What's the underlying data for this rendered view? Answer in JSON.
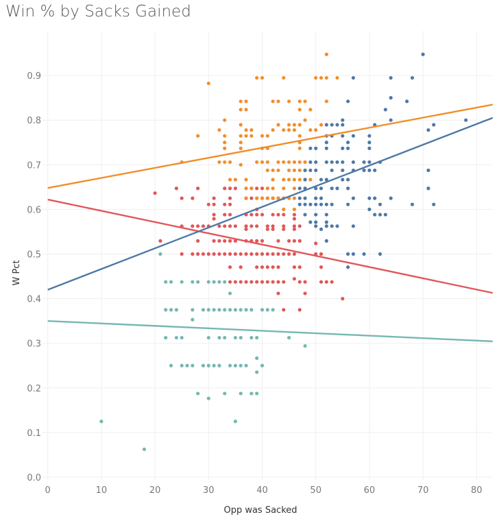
{
  "chart_data": {
    "type": "scatter",
    "title": "Win % by Sacks Gained",
    "xlabel": "Opp was Sacked",
    "ylabel": "W Pct",
    "xlim": [
      -1,
      83
    ],
    "ylim": [
      -0.02,
      1.0
    ],
    "xticks": [
      "0",
      "10",
      "20",
      "30",
      "40",
      "50",
      "60",
      "70",
      "80"
    ],
    "yticks": [
      "0.0",
      "0.1",
      "0.2",
      "0.3",
      "0.4",
      "0.5",
      "0.6",
      "0.7",
      "0.8",
      "0.9"
    ],
    "grid": true,
    "series": [
      {
        "color": "#76b7b2",
        "trend": {
          "intercept": 0.35,
          "slope": -0.00055
        },
        "rows": [
          {
            "y": 0.5,
            "x": [
              21
            ]
          },
          {
            "y": 0.4375,
            "x": [
              22,
              23,
              25,
              27,
              28,
              30,
              31,
              32,
              33
            ]
          },
          {
            "y": 0.4118,
            "x": [
              34
            ]
          },
          {
            "y": 0.375,
            "x": [
              22,
              23,
              24,
              27,
              29,
              30,
              31,
              32,
              33,
              34,
              35,
              36,
              37,
              38,
              40,
              41,
              42
            ]
          },
          {
            "y": 0.3529,
            "x": [
              27
            ]
          },
          {
            "y": 0.3125,
            "x": [
              22,
              24,
              25,
              30,
              32,
              33,
              35,
              36,
              38,
              39,
              45
            ]
          },
          {
            "y": 0.2941,
            "x": [
              48
            ]
          },
          {
            "y": 0.2667,
            "x": [
              39
            ]
          },
          {
            "y": 0.25,
            "x": [
              23,
              25,
              26,
              27,
              29,
              30,
              31,
              32,
              34,
              35,
              36,
              37,
              40
            ]
          },
          {
            "y": 0.2353,
            "x": [
              39
            ]
          },
          {
            "y": 0.1875,
            "x": [
              28,
              33,
              36,
              38,
              39
            ]
          },
          {
            "y": 0.1765,
            "x": [
              30
            ]
          },
          {
            "y": 0.125,
            "x": [
              10,
              35
            ]
          },
          {
            "y": 0.0625,
            "x": [
              18
            ]
          }
        ]
      },
      {
        "color": "#e15759",
        "trend": {
          "intercept": 0.622,
          "slope": -0.00252
        },
        "rows": [
          {
            "y": 0.6471,
            "x": [
              24,
              28,
              33,
              34,
              35,
              38,
              39,
              40,
              41
            ]
          },
          {
            "y": 0.6364,
            "x": [
              20
            ]
          },
          {
            "y": 0.625,
            "x": [
              25,
              27,
              31,
              34,
              37,
              38,
              39,
              40,
              41,
              42,
              43,
              44
            ]
          },
          {
            "y": 0.6111,
            "x": [
              30,
              31,
              33,
              34
            ]
          },
          {
            "y": 0.6,
            "x": [
              39
            ]
          },
          {
            "y": 0.5882,
            "x": [
              31,
              33,
              34,
              37,
              38,
              39,
              40,
              42,
              43,
              44,
              46
            ]
          },
          {
            "y": 0.5789,
            "x": [
              31,
              46
            ]
          },
          {
            "y": 0.5625,
            "x": [
              25,
              27,
              28,
              29,
              30,
              32,
              33,
              34,
              35,
              37,
              38,
              39,
              41,
              42,
              44,
              46,
              47
            ]
          },
          {
            "y": 0.5556,
            "x": [
              37,
              41,
              42,
              44,
              46
            ]
          },
          {
            "y": 0.5294,
            "x": [
              21,
              28,
              31,
              32,
              33,
              34,
              35,
              37,
              38,
              39,
              40,
              43,
              45,
              46,
              47
            ]
          },
          {
            "y": 0.5238,
            "x": [
              50
            ]
          },
          {
            "y": 0.5,
            "x": [
              25,
              27,
              28,
              29,
              30,
              31,
              32,
              33,
              34,
              35,
              36,
              37,
              38,
              39,
              40,
              41,
              42,
              43,
              44,
              45,
              46,
              50,
              51
            ]
          },
          {
            "y": 0.4706,
            "x": [
              34,
              36,
              39,
              40,
              41,
              42,
              43,
              46,
              47,
              51
            ]
          },
          {
            "y": 0.4444,
            "x": [
              46
            ]
          },
          {
            "y": 0.4375,
            "x": [
              34,
              35,
              36,
              37,
              38,
              39,
              40,
              41,
              42,
              43,
              44,
              47,
              48,
              51,
              52,
              53
            ]
          },
          {
            "y": 0.4118,
            "x": [
              43,
              48
            ]
          },
          {
            "y": 0.4,
            "x": [
              55
            ]
          },
          {
            "y": 0.375,
            "x": [
              44,
              47
            ]
          }
        ]
      },
      {
        "color": "#f28e2b",
        "trend": {
          "intercept": 0.648,
          "slope": 0.00225
        },
        "rows": [
          {
            "y": 0.9474,
            "x": [
              52
            ]
          },
          {
            "y": 0.8947,
            "x": [
              39,
              40,
              44,
              50,
              51,
              52,
              54
            ]
          },
          {
            "y": 0.8824,
            "x": [
              30
            ]
          },
          {
            "y": 0.8421,
            "x": [
              36,
              37,
              42,
              43,
              45,
              47,
              48,
              52
            ]
          },
          {
            "y": 0.8235,
            "x": [
              36,
              37,
              47,
              49
            ]
          },
          {
            "y": 0.8,
            "x": [
              33,
              48
            ]
          },
          {
            "y": 0.7895,
            "x": [
              36,
              43,
              45,
              46,
              47,
              51
            ]
          },
          {
            "y": 0.7778,
            "x": [
              32,
              37,
              38,
              42,
              44,
              45,
              46,
              49,
              50
            ]
          },
          {
            "y": 0.7647,
            "x": [
              28,
              33,
              36,
              37,
              38,
              40,
              41,
              47
            ]
          },
          {
            "y": 0.75,
            "x": [
              33,
              36,
              47
            ]
          },
          {
            "y": 0.7368,
            "x": [
              33,
              36,
              40,
              41,
              47
            ]
          },
          {
            "y": 0.7059,
            "x": [
              25,
              32,
              33,
              34,
              39,
              40,
              41,
              43,
              44,
              45,
              46,
              47,
              48
            ]
          },
          {
            "y": 0.7,
            "x": [
              36
            ]
          },
          {
            "y": 0.6875,
            "x": [
              41,
              42,
              43,
              45,
              46,
              47,
              48
            ]
          },
          {
            "y": 0.6667,
            "x": [
              34,
              35,
              37,
              42,
              44,
              45,
              46,
              47,
              48,
              49
            ]
          },
          {
            "y": 0.6471,
            "x": [
              37,
              38,
              41,
              42,
              44,
              46
            ]
          },
          {
            "y": 0.625,
            "x": [
              37,
              39,
              40,
              41,
              42,
              43,
              44,
              45,
              46
            ]
          },
          {
            "y": 0.6,
            "x": [
              44,
              46
            ]
          }
        ]
      },
      {
        "color": "#4e79a7",
        "trend": {
          "intercept": 0.42,
          "slope": 0.00464
        },
        "rows": [
          {
            "y": 0.9474,
            "x": [
              70
            ]
          },
          {
            "y": 0.8947,
            "x": [
              57,
              64,
              68
            ]
          },
          {
            "y": 0.85,
            "x": [
              64
            ]
          },
          {
            "y": 0.8421,
            "x": [
              56,
              67
            ]
          },
          {
            "y": 0.8235,
            "x": [
              63
            ]
          },
          {
            "y": 0.8,
            "x": [
              55,
              64,
              78
            ]
          },
          {
            "y": 0.7895,
            "x": [
              52,
              53,
              54,
              55,
              61,
              72
            ]
          },
          {
            "y": 0.7778,
            "x": [
              71
            ]
          },
          {
            "y": 0.7647,
            "x": [
              52,
              53,
              55,
              57,
              60
            ]
          },
          {
            "y": 0.75,
            "x": [
              52,
              56,
              60
            ]
          },
          {
            "y": 0.7368,
            "x": [
              49,
              50,
              52,
              55,
              56,
              60
            ]
          },
          {
            "y": 0.7059,
            "x": [
              49,
              50,
              52,
              53,
              54,
              55,
              57,
              59,
              60,
              62
            ]
          },
          {
            "y": 0.6875,
            "x": [
              48,
              49,
              50,
              53,
              55,
              57,
              59,
              60,
              61,
              71
            ]
          },
          {
            "y": 0.6667,
            "x": [
              48,
              51,
              52,
              55,
              56
            ]
          },
          {
            "y": 0.6471,
            "x": [
              47,
              48,
              50,
              51,
              53,
              54,
              56,
              71
            ]
          },
          {
            "y": 0.625,
            "x": [
              47,
              48,
              50,
              51,
              57,
              60,
              61,
              64
            ]
          },
          {
            "y": 0.6111,
            "x": [
              47,
              48,
              49,
              50,
              51,
              52,
              53,
              56,
              62,
              68,
              72
            ]
          },
          {
            "y": 0.6,
            "x": [
              60
            ]
          },
          {
            "y": 0.5882,
            "x": [
              48,
              50,
              52,
              61,
              62,
              63
            ]
          },
          {
            "y": 0.5714,
            "x": [
              49,
              50,
              52
            ]
          },
          {
            "y": 0.5625,
            "x": [
              50,
              52,
              53,
              54,
              57
            ]
          },
          {
            "y": 0.5556,
            "x": [
              51
            ]
          },
          {
            "y": 0.5294,
            "x": [
              52
            ]
          },
          {
            "y": 0.5,
            "x": [
              56,
              57,
              59,
              62
            ]
          },
          {
            "y": 0.4706,
            "x": [
              56
            ]
          }
        ]
      }
    ]
  }
}
